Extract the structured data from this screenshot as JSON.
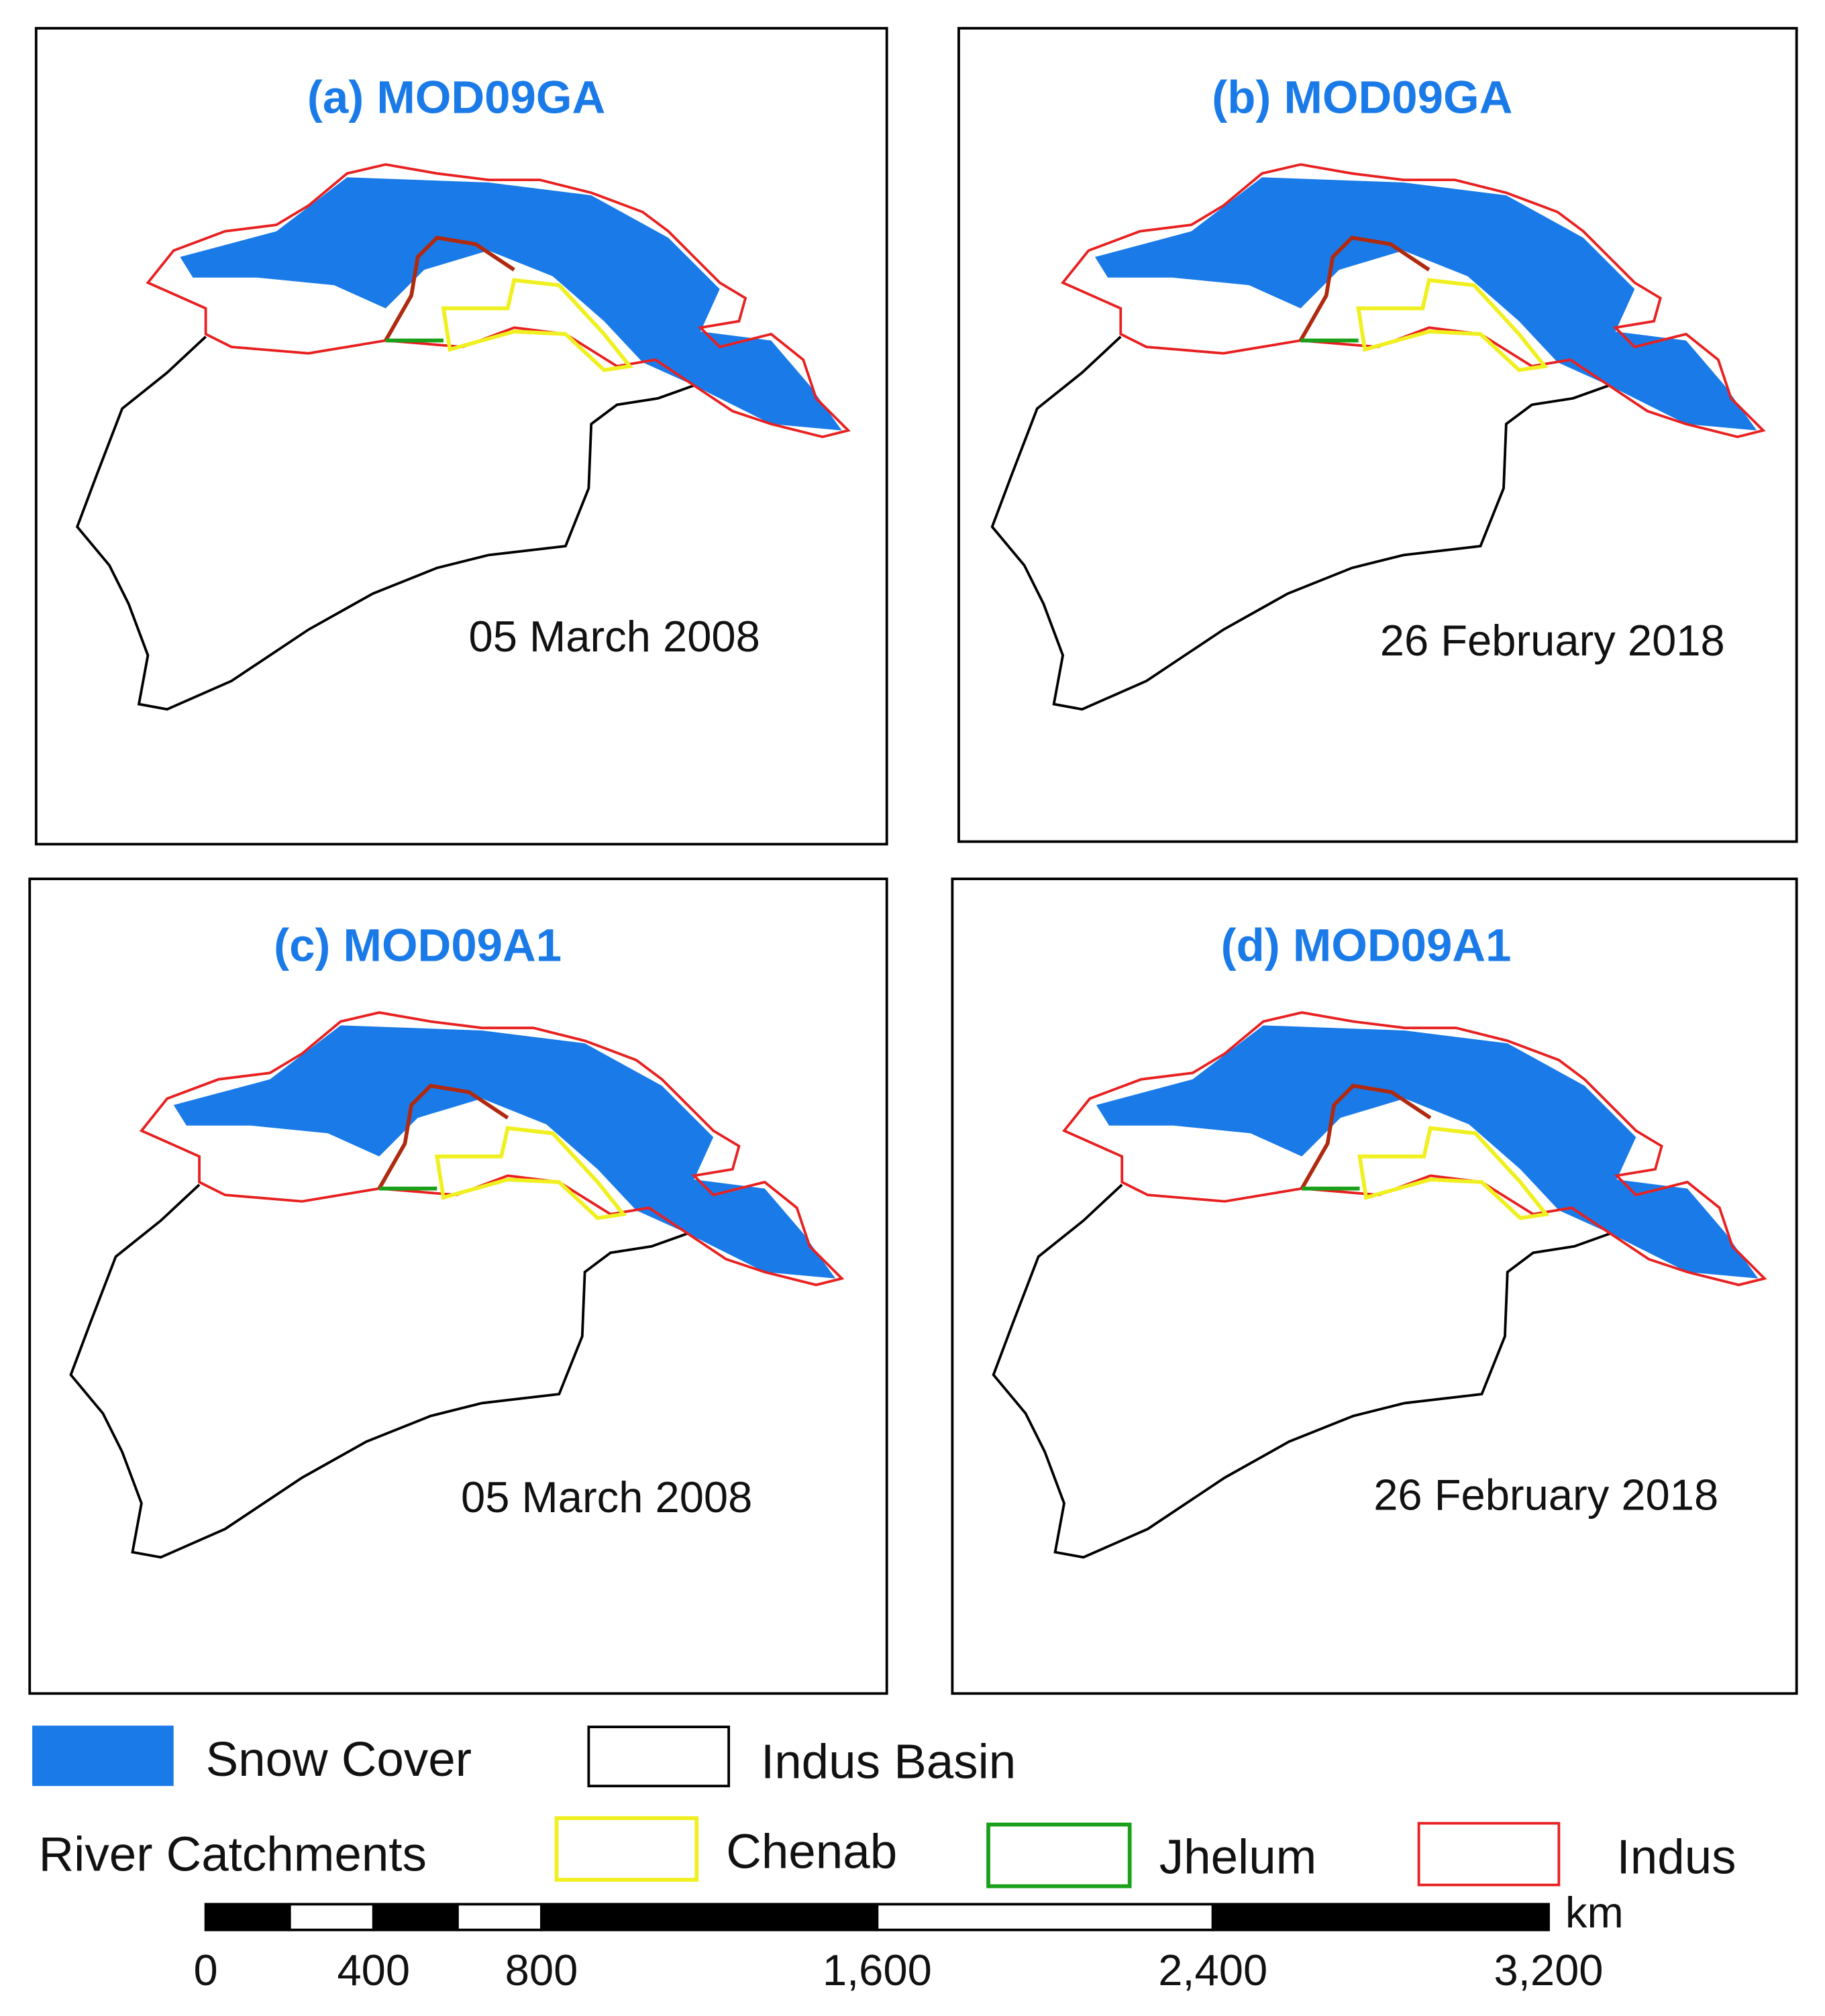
{
  "panels": [
    {
      "title": "(a) MOD09GA",
      "date": "05 March 2008"
    },
    {
      "title": "(b) MOD09GA",
      "date": "26 February 2018"
    },
    {
      "title": "(c) MOD09A1",
      "date": "05 March 2008"
    },
    {
      "title": "(d) MOD09A1",
      "date": "26 February 2018"
    }
  ],
  "legend": {
    "snow_cover": "Snow Cover",
    "indus_basin": "Indus Basin",
    "river_catchments": "River Catchments",
    "chenab": "Chenab",
    "jhelum": "Jhelum",
    "indus": "Indus"
  },
  "scale_bar": {
    "unit": "km",
    "ticks": [
      0,
      400,
      800,
      {
        "value": 1600,
        "label": "1,600"
      },
      {
        "value": 2400,
        "label": "2,400"
      },
      {
        "value": 3200,
        "label": "3,200"
      }
    ]
  }
}
